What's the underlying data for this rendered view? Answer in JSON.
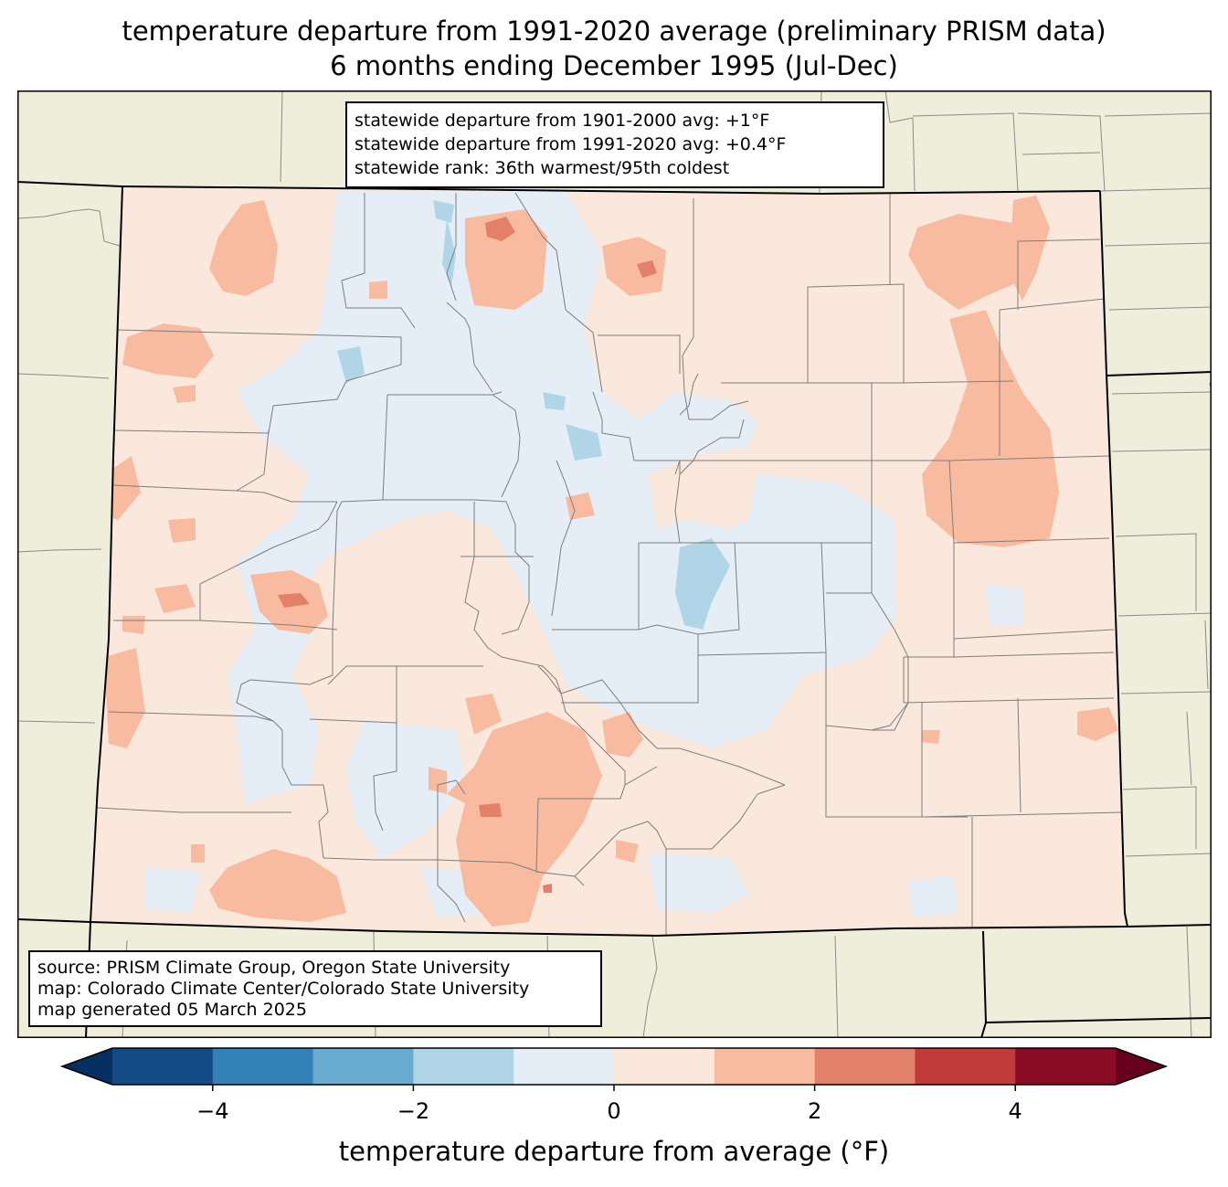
{
  "title": {
    "line1": "temperature departure from 1991-2020 average (preliminary PRISM data)",
    "line2": "6 months ending December 1995 (Jul-Dec)"
  },
  "stats": {
    "line1": "statewide departure from 1901-2000 avg: +1°F",
    "line2": "statewide departure from 1991-2020 avg: +0.4°F",
    "line3": "statewide rank: 36th warmest/95th coldest"
  },
  "credits": {
    "line1": "source: PRISM Climate Group, Oregon State University",
    "line2": "map: Colorado Climate Center/Colorado State University",
    "line3": "map generated 05 March 2025"
  },
  "colorbar": {
    "label": "temperature departure from average (°F)",
    "min": -5,
    "max": 5,
    "ticks": [
      {
        "value": -4,
        "label": "−4"
      },
      {
        "value": -2,
        "label": "−2"
      },
      {
        "value": 0,
        "label": "0"
      },
      {
        "value": 2,
        "label": "2"
      },
      {
        "value": 4,
        "label": "4"
      }
    ],
    "under_color": "#053061",
    "over_color": "#67001f",
    "bins": [
      {
        "from": -5,
        "to": -4,
        "color": "#134b87"
      },
      {
        "from": -4,
        "to": -3,
        "color": "#3480b9"
      },
      {
        "from": -3,
        "to": -2,
        "color": "#6aacd0"
      },
      {
        "from": -2,
        "to": -1,
        "color": "#b0d5e7"
      },
      {
        "from": -1,
        "to": 0,
        "color": "#e5eef6"
      },
      {
        "from": 0,
        "to": 1,
        "color": "#fae8dd"
      },
      {
        "from": 1,
        "to": 2,
        "color": "#f8bba0"
      },
      {
        "from": 2,
        "to": 3,
        "color": "#e3806a"
      },
      {
        "from": 3,
        "to": 4,
        "color": "#c13a3c"
      },
      {
        "from": 4,
        "to": 5,
        "color": "#8a0b25"
      }
    ]
  },
  "map": {
    "land_color": "#efeedb",
    "state_fill_base": "#fae8dd"
  }
}
